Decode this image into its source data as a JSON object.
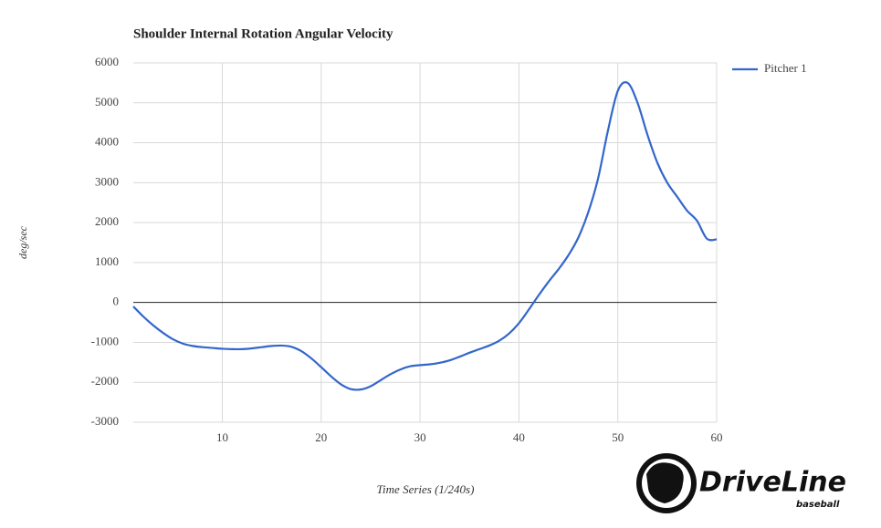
{
  "chart_data": {
    "type": "line",
    "title": "Shoulder Internal Rotation Angular Velocity",
    "x_label": "Time Series (1/240s)",
    "y_label": "deg/sec",
    "x": [
      1,
      2,
      3,
      4,
      5,
      6,
      7,
      8,
      9,
      10,
      11,
      12,
      13,
      14,
      15,
      16,
      17,
      18,
      19,
      20,
      21,
      22,
      23,
      24,
      25,
      26,
      27,
      28,
      29,
      30,
      31,
      32,
      33,
      34,
      35,
      36,
      37,
      38,
      39,
      40,
      41,
      42,
      43,
      44,
      45,
      46,
      47,
      48,
      49,
      50,
      51,
      52,
      53,
      54,
      55,
      56,
      57,
      58,
      59,
      60
    ],
    "series": [
      {
        "name": "Pitcher 1",
        "color": "#3366cc",
        "values": [
          -100,
          -350,
          -570,
          -760,
          -920,
          -1030,
          -1090,
          -1120,
          -1140,
          -1160,
          -1170,
          -1170,
          -1150,
          -1120,
          -1090,
          -1080,
          -1110,
          -1220,
          -1400,
          -1620,
          -1850,
          -2050,
          -2170,
          -2180,
          -2100,
          -1950,
          -1800,
          -1680,
          -1600,
          -1570,
          -1550,
          -1510,
          -1450,
          -1360,
          -1260,
          -1170,
          -1080,
          -960,
          -780,
          -520,
          -180,
          180,
          520,
          830,
          1180,
          1620,
          2250,
          3100,
          4300,
          5300,
          5500,
          5000,
          4200,
          3500,
          3000,
          2650,
          2300,
          2050,
          1600,
          1580
        ]
      }
    ],
    "xlim": [
      1,
      60
    ],
    "xticks": [
      10,
      20,
      30,
      40,
      50,
      60
    ],
    "ylim": [
      -3000,
      6000
    ],
    "yticks": [
      -3000,
      -2000,
      -1000,
      0,
      1000,
      2000,
      3000,
      4000,
      5000,
      6000
    ],
    "grid": true,
    "legend": "right"
  },
  "logo": {
    "brand": "DriveLine",
    "tagline": "baseball"
  }
}
